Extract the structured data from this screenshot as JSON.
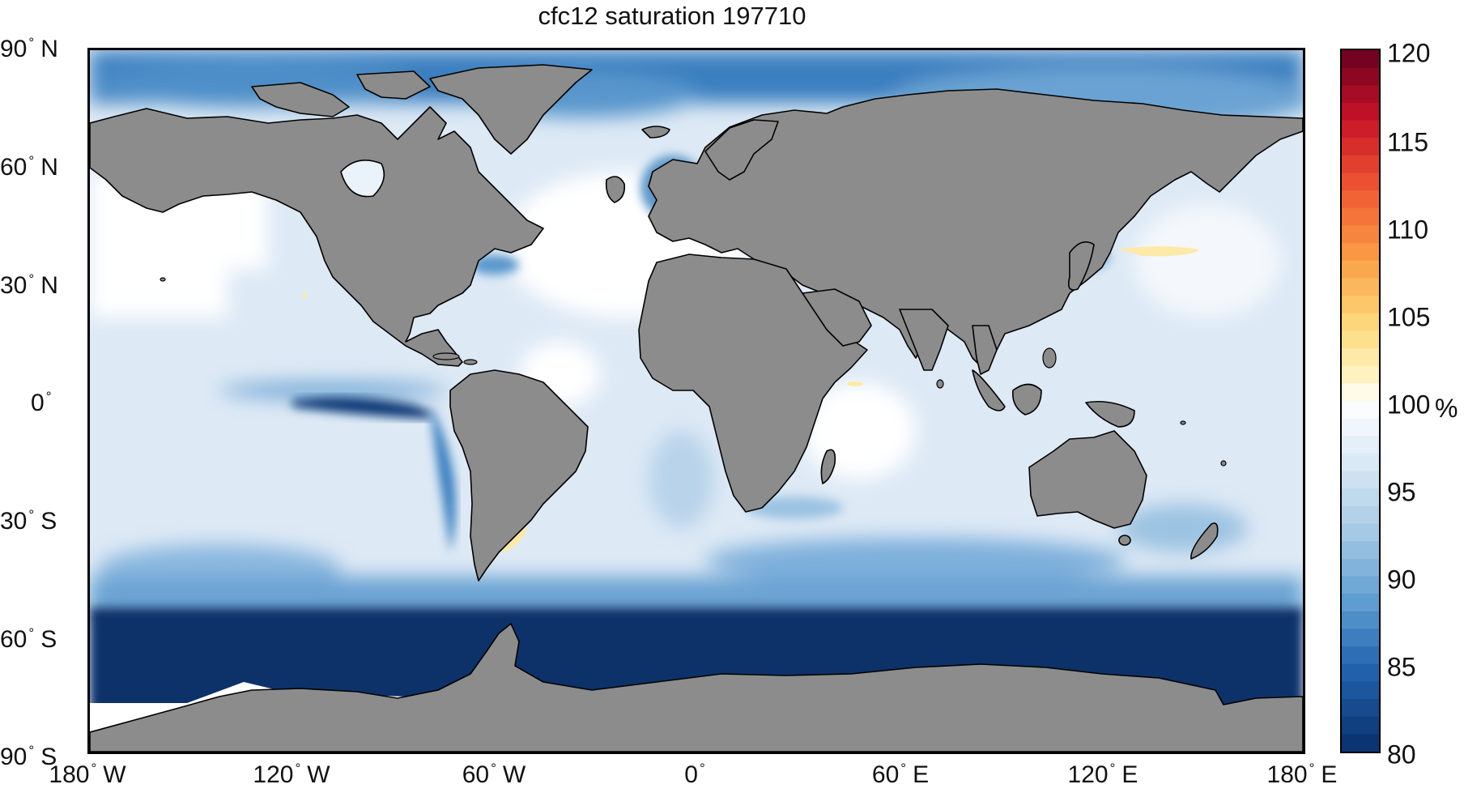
{
  "title": "cfc12 saturation 197710",
  "lat_labels": [
    {
      "value": "90",
      "hemi": "N"
    },
    {
      "value": "60",
      "hemi": "N"
    },
    {
      "value": "30",
      "hemi": "N"
    },
    {
      "value": "0",
      "hemi": ""
    },
    {
      "value": "30",
      "hemi": "S"
    },
    {
      "value": "60",
      "hemi": "S"
    },
    {
      "value": "90",
      "hemi": "S"
    }
  ],
  "lon_labels": [
    {
      "value": "180",
      "hemi": "W"
    },
    {
      "value": "120",
      "hemi": "W"
    },
    {
      "value": "60",
      "hemi": "W"
    },
    {
      "value": "0",
      "hemi": ""
    },
    {
      "value": "60",
      "hemi": "E"
    },
    {
      "value": "120",
      "hemi": "E"
    },
    {
      "value": "180",
      "hemi": "E"
    }
  ],
  "colorbar": {
    "ticks": [
      "120",
      "115",
      "110",
      "105",
      "100",
      "95",
      "90",
      "85",
      "80"
    ],
    "unit": "%",
    "range": [
      80,
      120
    ]
  },
  "colors": {
    "land": "#8c8c8c",
    "ocean_base": "#dde9f5",
    "saturated": "#ffffff",
    "deep_blue": "#08306b",
    "mid_blue": "#2f74b5",
    "light_blue": "#9cc3e2",
    "yellow": "#fde9a8"
  }
}
